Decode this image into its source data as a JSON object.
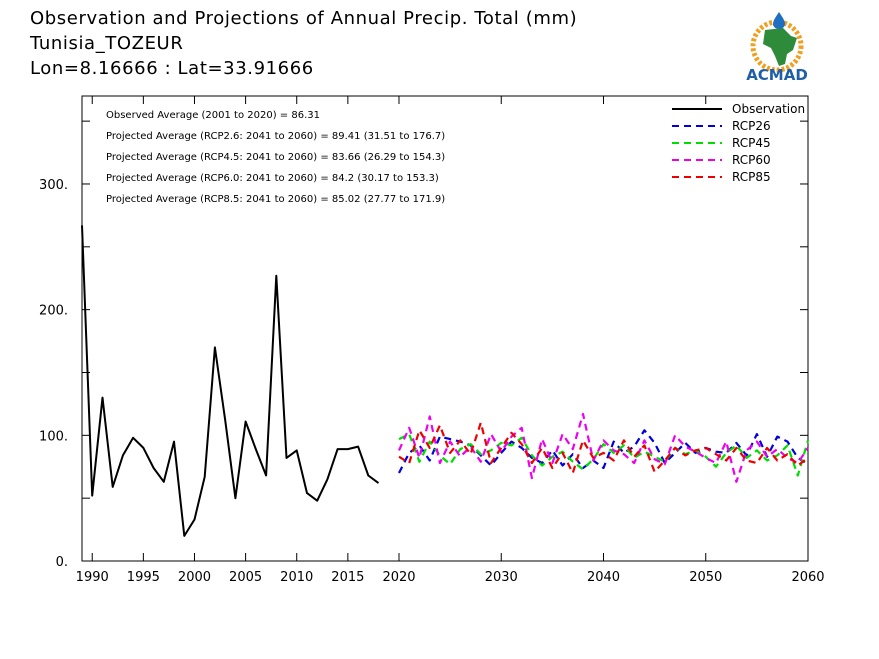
{
  "header": {
    "line1": "Observation and Projections of Annual Precip. Total (mm)",
    "line2": "Tunisia_TOZEUR",
    "line3": "Lon=8.16666 : Lat=33.91666"
  },
  "logo": {
    "text": "ACMAD",
    "icon": "africa-map-logo-icon"
  },
  "annotations": [
    "Observed Average (2001 to 2020) = 86.31",
    "Projected Average (RCP2.6: 2041 to 2060) = 89.41 (31.51 to 176.7)",
    "Projected Average (RCP4.5: 2041 to 2060) = 83.66 (26.29 to 154.3)",
    "Projected Average (RCP6.0: 2041 to 2060) = 84.2 (30.17 to 153.3)",
    "Projected Average (RCP8.5: 2041 to 2060) = 85.02 (27.77 to 171.9)"
  ],
  "chart_data": {
    "type": "line",
    "title": "Observation and Projections of Annual Precip. Total (mm)",
    "xlim": [
      1989,
      2060
    ],
    "ylim": [
      0,
      370
    ],
    "x_ticks": [
      {
        "value": 1990,
        "label": "1990"
      },
      {
        "value": 1995,
        "label": "1995"
      },
      {
        "value": 2000,
        "label": "2000"
      },
      {
        "value": 2005,
        "label": "2005"
      },
      {
        "value": 2010,
        "label": "2010"
      },
      {
        "value": 2015,
        "label": "2015"
      },
      {
        "value": 2020,
        "label": "2020"
      },
      {
        "value": 2030,
        "label": "2030"
      },
      {
        "value": 2040,
        "label": "2040"
      },
      {
        "value": 2050,
        "label": "2050"
      },
      {
        "value": 2060,
        "label": "2060"
      }
    ],
    "y_ticks": [
      {
        "value": 0,
        "label": "0."
      },
      {
        "value": 100,
        "label": "100."
      },
      {
        "value": 200,
        "label": "200."
      },
      {
        "value": 300,
        "label": "300."
      }
    ],
    "legend_position": "top-right",
    "series": [
      {
        "name": "Observation",
        "color": "#000000",
        "dash": "solid",
        "x": [
          1989,
          1990,
          1991,
          1992,
          1993,
          1994,
          1995,
          1996,
          1997,
          1998,
          1999,
          2000,
          2001,
          2002,
          2003,
          2004,
          2005,
          2006,
          2007,
          2008,
          2009,
          2010,
          2011,
          2012,
          2013,
          2014,
          2015,
          2016,
          2017,
          2018,
          2019
        ],
        "values": [
          267,
          52,
          130,
          59,
          84,
          98,
          90,
          74,
          63,
          95,
          20,
          33,
          67,
          170,
          112,
          50,
          111,
          89,
          68,
          227,
          82,
          88,
          54,
          48,
          65,
          89,
          89,
          91,
          68,
          62,
          null
        ]
      },
      {
        "name": "RCP26",
        "color": "#0000dd",
        "dash": "dashed",
        "x": [
          2020,
          2021,
          2022,
          2023,
          2024,
          2025,
          2026,
          2027,
          2028,
          2029,
          2030,
          2031,
          2032,
          2033,
          2034,
          2035,
          2036,
          2037,
          2038,
          2039,
          2040,
          2041,
          2042,
          2043,
          2044,
          2045,
          2046,
          2047,
          2048,
          2049,
          2050,
          2051,
          2052,
          2053,
          2054,
          2055,
          2056,
          2057,
          2058,
          2059,
          2060
        ],
        "values": [
          70,
          86,
          92,
          80,
          99,
          97,
          95,
          92,
          84,
          76,
          86,
          95,
          90,
          82,
          78,
          88,
          76,
          85,
          74,
          80,
          74,
          95,
          86,
          91,
          104,
          94,
          78,
          86,
          94,
          86,
          90,
          87,
          86,
          94,
          84,
          101,
          83,
          99,
          95,
          82,
          77
        ]
      },
      {
        "name": "RCP45",
        "color": "#00dd00",
        "dash": "dashed",
        "x": [
          2020,
          2021,
          2022,
          2023,
          2024,
          2025,
          2026,
          2027,
          2028,
          2029,
          2030,
          2031,
          2032,
          2033,
          2034,
          2035,
          2036,
          2037,
          2038,
          2039,
          2040,
          2041,
          2042,
          2043,
          2044,
          2045,
          2046,
          2047,
          2048,
          2049,
          2050,
          2051,
          2052,
          2053,
          2054,
          2055,
          2056,
          2057,
          2058,
          2059,
          2060
        ],
        "values": [
          97,
          101,
          79,
          95,
          84,
          77,
          89,
          93,
          85,
          88,
          94,
          92,
          98,
          84,
          76,
          83,
          87,
          79,
          73,
          81,
          93,
          86,
          92,
          82,
          87,
          83,
          79,
          90,
          85,
          88,
          83,
          75,
          86,
          92,
          82,
          88,
          80,
          84,
          92,
          68,
          96
        ]
      },
      {
        "name": "RCP60",
        "color": "#ee00ee",
        "dash": "dashed",
        "x": [
          2020,
          2021,
          2022,
          2023,
          2024,
          2025,
          2026,
          2027,
          2028,
          2029,
          2030,
          2031,
          2032,
          2033,
          2034,
          2035,
          2036,
          2037,
          2038,
          2039,
          2040,
          2041,
          2042,
          2043,
          2044,
          2045,
          2046,
          2047,
          2048,
          2049,
          2050,
          2051,
          2052,
          2053,
          2054,
          2055,
          2056,
          2057,
          2058,
          2059,
          2060
        ],
        "values": [
          88,
          106,
          82,
          115,
          78,
          95,
          83,
          91,
          79,
          101,
          87,
          99,
          106,
          66,
          97,
          78,
          101,
          89,
          117,
          80,
          96,
          88,
          85,
          78,
          96,
          81,
          77,
          100,
          91,
          87,
          82,
          78,
          95,
          63,
          88,
          95,
          83,
          89,
          82,
          78,
          90
        ]
      },
      {
        "name": "RCP85",
        "color": "#ee0000",
        "dash": "dashed",
        "x": [
          2020,
          2021,
          2022,
          2023,
          2024,
          2025,
          2026,
          2027,
          2028,
          2029,
          2030,
          2031,
          2032,
          2033,
          2034,
          2035,
          2036,
          2037,
          2038,
          2039,
          2040,
          2041,
          2042,
          2043,
          2044,
          2045,
          2046,
          2047,
          2048,
          2049,
          2050,
          2051,
          2052,
          2053,
          2054,
          2055,
          2056,
          2057,
          2058,
          2059,
          2060
        ],
        "values": [
          83,
          78,
          104,
          90,
          108,
          86,
          96,
          85,
          110,
          78,
          90,
          102,
          93,
          78,
          90,
          74,
          86,
          70,
          96,
          82,
          86,
          80,
          96,
          83,
          92,
          71,
          80,
          90,
          84,
          88,
          90,
          85,
          80,
          90,
          80,
          78,
          90,
          80,
          85,
          76,
          82
        ]
      }
    ]
  }
}
